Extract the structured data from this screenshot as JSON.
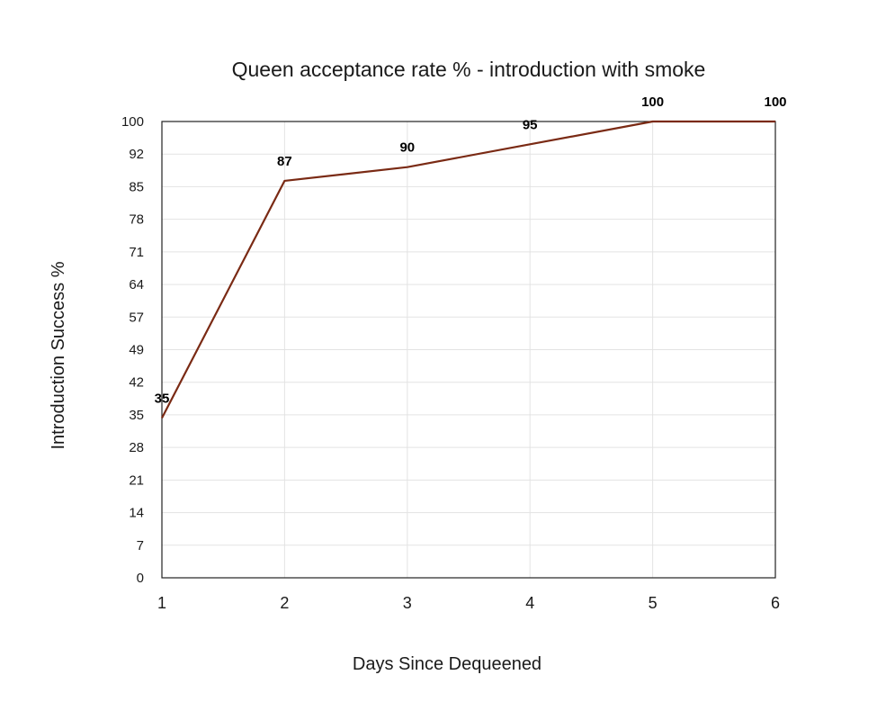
{
  "chart_data": {
    "type": "line",
    "title": "Queen acceptance rate % - introduction with smoke",
    "xlabel": "Days Since Dequeened",
    "ylabel": "Introduction Success %",
    "x": [
      1,
      2,
      3,
      4,
      5,
      6
    ],
    "x_ticks": [
      "1",
      "2",
      "3",
      "4",
      "5",
      "6"
    ],
    "y_ticks": [
      "0",
      "7",
      "14",
      "21",
      "28",
      "35",
      "42",
      "49",
      "57",
      "64",
      "71",
      "78",
      "85",
      "92",
      "100"
    ],
    "ylim": [
      0,
      100
    ],
    "xlim": [
      1,
      6
    ],
    "grid": true,
    "series": [
      {
        "values": [
          35,
          87,
          90,
          95,
          100,
          100
        ],
        "labels": [
          "35",
          "87",
          "90",
          "95",
          "100",
          "100"
        ],
        "color": "#7a2a14"
      }
    ]
  }
}
